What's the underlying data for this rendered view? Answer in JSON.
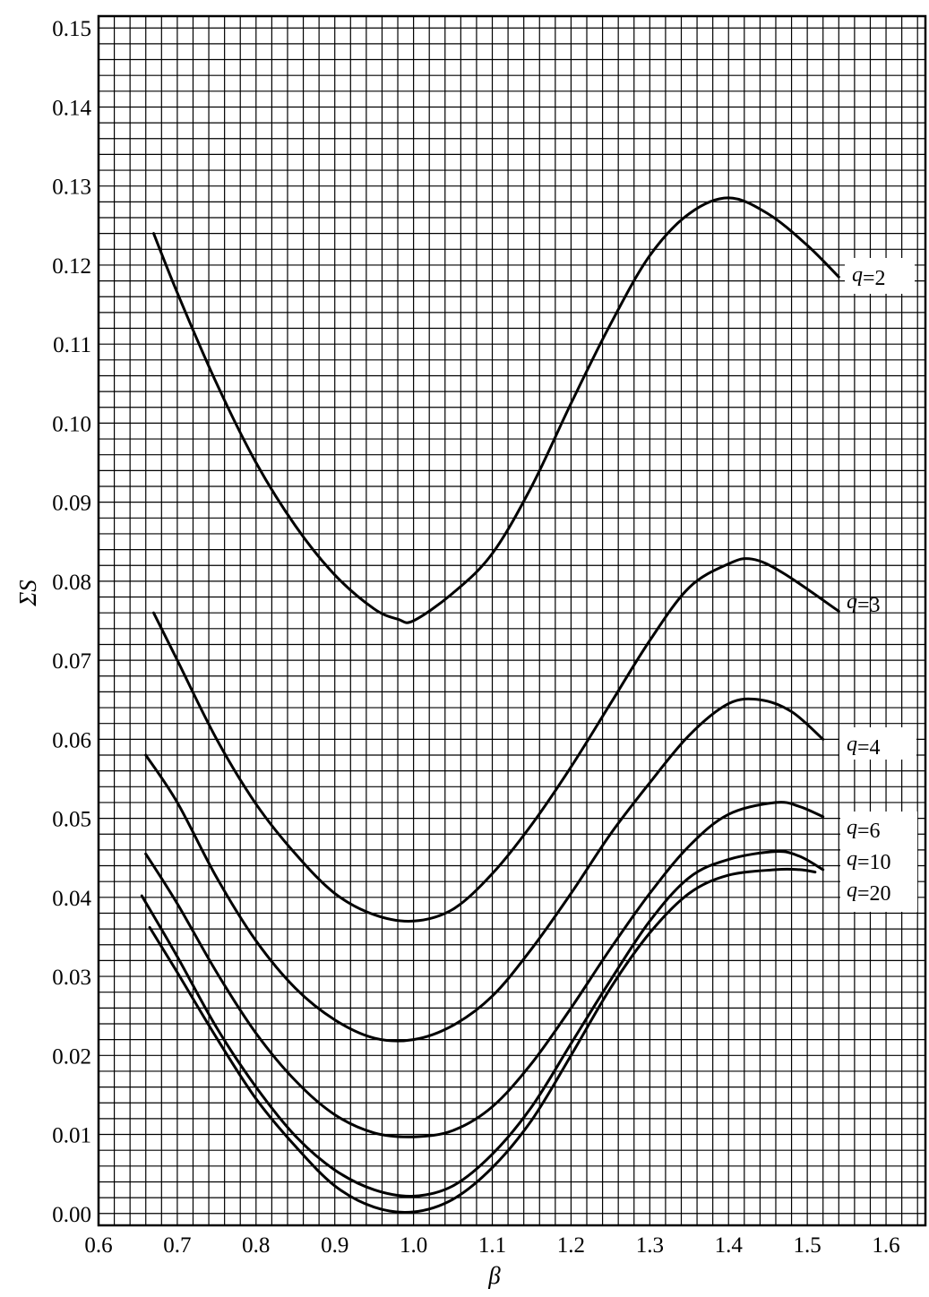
{
  "chart_data": {
    "type": "line",
    "xlabel": "β",
    "ylabel": "ΣS",
    "xlim": [
      0.6,
      1.65
    ],
    "ylim": [
      -0.0015,
      0.1515
    ],
    "grid": true,
    "x_ticks": [
      "0.6",
      "0.7",
      "0.8",
      "0.9",
      "1.0",
      "1.1",
      "1.2",
      "1.3",
      "1.4",
      "1.5",
      "1.6"
    ],
    "y_ticks": [
      "0.00",
      "0.01",
      "0.02",
      "0.03",
      "0.04",
      "0.05",
      "0.06",
      "0.07",
      "0.08",
      "0.09",
      "0.10",
      "0.11",
      "0.12",
      "0.13",
      "0.14",
      "0.15"
    ],
    "series": [
      {
        "name": "q=2",
        "q": "q",
        "eq": "=2",
        "x": [
          0.67,
          0.7,
          0.75,
          0.8,
          0.85,
          0.9,
          0.95,
          0.98,
          1.0,
          1.05,
          1.1,
          1.15,
          1.2,
          1.25,
          1.3,
          1.35,
          1.4,
          1.45,
          1.5,
          1.54
        ],
        "y": [
          0.124,
          0.1165,
          0.105,
          0.095,
          0.087,
          0.0808,
          0.0765,
          0.0752,
          0.075,
          0.0785,
          0.0835,
          0.092,
          0.1025,
          0.1125,
          0.1212,
          0.1265,
          0.1285,
          0.1265,
          0.1225,
          0.1185
        ]
      },
      {
        "name": "q=3",
        "q": "q",
        "eq": "=3",
        "x": [
          0.67,
          0.7,
          0.75,
          0.8,
          0.85,
          0.9,
          0.95,
          1.0,
          1.05,
          1.1,
          1.15,
          1.2,
          1.25,
          1.3,
          1.35,
          1.4,
          1.43,
          1.47,
          1.54
        ],
        "y": [
          0.076,
          0.07,
          0.06,
          0.0518,
          0.0455,
          0.0405,
          0.0378,
          0.037,
          0.0385,
          0.043,
          0.0492,
          0.0565,
          0.0645,
          0.0725,
          0.0792,
          0.0822,
          0.0828,
          0.081,
          0.0762
        ]
      },
      {
        "name": "q=4",
        "q": "q",
        "eq": "=4",
        "x": [
          0.66,
          0.7,
          0.75,
          0.8,
          0.85,
          0.9,
          0.95,
          1.0,
          1.05,
          1.1,
          1.15,
          1.2,
          1.25,
          1.3,
          1.35,
          1.4,
          1.44,
          1.48,
          1.52
        ],
        "y": [
          0.058,
          0.052,
          0.0425,
          0.0345,
          0.0285,
          0.0245,
          0.0222,
          0.022,
          0.0238,
          0.0275,
          0.0335,
          0.0405,
          0.048,
          0.0545,
          0.0605,
          0.0645,
          0.065,
          0.0635,
          0.06
        ]
      },
      {
        "name": "q=6",
        "q": "q",
        "eq": "=6",
        "x": [
          0.66,
          0.7,
          0.75,
          0.8,
          0.85,
          0.9,
          0.95,
          1.0,
          1.05,
          1.1,
          1.15,
          1.2,
          1.25,
          1.3,
          1.35,
          1.4,
          1.46,
          1.49,
          1.52
        ],
        "y": [
          0.0455,
          0.0392,
          0.0305,
          0.0228,
          0.0168,
          0.0125,
          0.0102,
          0.0097,
          0.0105,
          0.0135,
          0.019,
          0.026,
          0.0335,
          0.0405,
          0.0465,
          0.0505,
          0.052,
          0.0515,
          0.0502
        ]
      },
      {
        "name": "q=10",
        "q": "q",
        "eq": "=10",
        "x": [
          0.655,
          0.7,
          0.75,
          0.8,
          0.85,
          0.9,
          0.95,
          1.0,
          1.05,
          1.1,
          1.15,
          1.2,
          1.25,
          1.3,
          1.35,
          1.4,
          1.46,
          1.49,
          1.52
        ],
        "y": [
          0.0402,
          0.0325,
          0.0235,
          0.016,
          0.0098,
          0.0055,
          0.003,
          0.0022,
          0.0035,
          0.0075,
          0.0135,
          0.0215,
          0.0295,
          0.037,
          0.0425,
          0.0448,
          0.0458,
          0.0452,
          0.0435
        ]
      },
      {
        "name": "q=20",
        "q": "q",
        "eq": "=20",
        "x": [
          0.665,
          0.7,
          0.75,
          0.8,
          0.85,
          0.9,
          0.95,
          1.0,
          1.05,
          1.1,
          1.15,
          1.2,
          1.25,
          1.3,
          1.35,
          1.4,
          1.46,
          1.49,
          1.51
        ],
        "y": [
          0.0362,
          0.0305,
          0.0222,
          0.0145,
          0.0085,
          0.0035,
          0.0008,
          0.0002,
          0.0018,
          0.0058,
          0.0118,
          0.02,
          0.0285,
          0.0355,
          0.0405,
          0.0428,
          0.0435,
          0.0435,
          0.0432
        ]
      }
    ]
  }
}
